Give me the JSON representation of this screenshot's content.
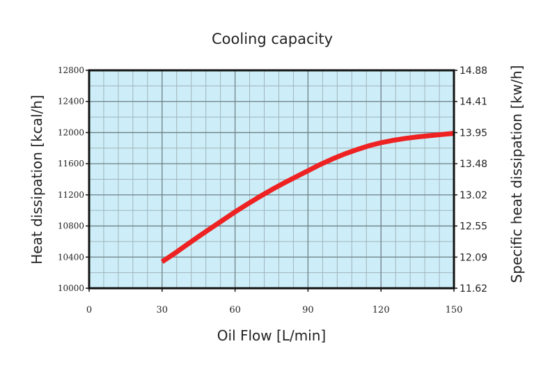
{
  "chart_data": {
    "type": "line",
    "title": "Cooling capacity",
    "xlabel": "Oil Flow [L/min]",
    "ylabel": "Heat dissipation [kcal/h]",
    "y2label": "Specific heat dissipation [kw/h]",
    "xlim": [
      0,
      150
    ],
    "ylim": [
      10000,
      12800
    ],
    "x_ticks": [
      "0",
      "30",
      "60",
      "90",
      "120",
      "150"
    ],
    "y_ticks": [
      "10000",
      "10400",
      "10800",
      "11200",
      "11600",
      "12000",
      "12400",
      "12800"
    ],
    "y2_ticks": [
      "11.62",
      "12.09",
      "12.55",
      "13.02",
      "13.48",
      "13.95",
      "14.41",
      "14.88"
    ],
    "grid": true,
    "minor_grid_x_step": 6,
    "minor_grid_y_step": 200,
    "major_grid_x_step": 30,
    "major_grid_y_step": 400,
    "colors": {
      "plot_background": "#cdeef8",
      "grid_minor": "#9fb3bb",
      "grid_major": "#6f8088",
      "series": "#ee2222"
    },
    "series": [
      {
        "x": [
          30,
          35,
          40,
          45,
          50,
          55,
          60,
          65,
          70,
          75,
          80,
          85,
          90,
          95,
          100,
          105,
          110,
          115,
          120,
          125,
          130,
          135,
          140,
          145,
          150
        ],
        "y": [
          10340,
          10445,
          10555,
          10665,
          10770,
          10875,
          10980,
          11080,
          11175,
          11265,
          11350,
          11430,
          11510,
          11590,
          11660,
          11725,
          11780,
          11830,
          11870,
          11900,
          11925,
          11945,
          11960,
          11975,
          11990
        ]
      }
    ]
  }
}
